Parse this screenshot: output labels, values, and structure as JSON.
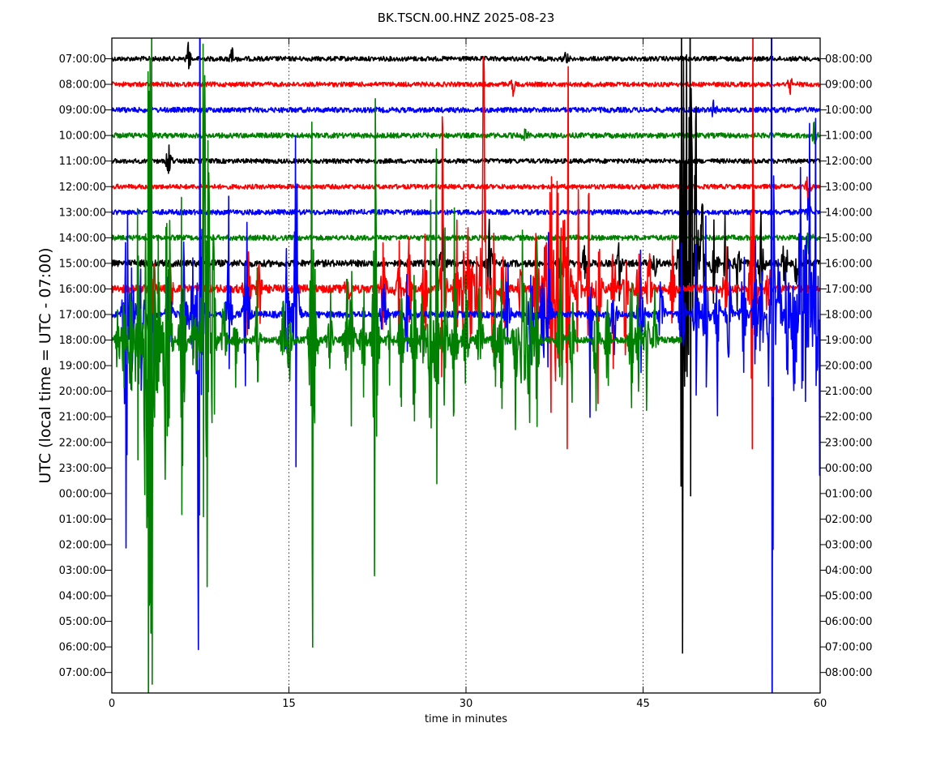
{
  "chart_data": {
    "type": "line",
    "title": "BK.TSCN.00.HNZ 2025-08-23",
    "xlabel": "time in minutes",
    "ylabel": "UTC (local time = UTC - 07:00)",
    "xlim": [
      0,
      60
    ],
    "x_ticks": [
      "0",
      "15",
      "30",
      "45",
      "60"
    ],
    "x_tick_values": [
      0,
      15,
      30,
      45,
      60
    ],
    "vertical_grid": "dotted at 15, 30, 45",
    "left_tick_labels": [
      "07:00:00",
      "08:00:00",
      "09:00:00",
      "10:00:00",
      "11:00:00",
      "12:00:00",
      "13:00:00",
      "14:00:00",
      "15:00:00",
      "16:00:00",
      "17:00:00",
      "18:00:00",
      "19:00:00",
      "20:00:00",
      "21:00:00",
      "22:00:00",
      "23:00:00",
      "00:00:00",
      "01:00:00",
      "02:00:00",
      "03:00:00",
      "04:00:00",
      "05:00:00",
      "06:00:00",
      "07:00:00"
    ],
    "right_tick_labels": [
      "08:00:00",
      "09:00:00",
      "10:00:00",
      "11:00:00",
      "12:00:00",
      "13:00:00",
      "14:00:00",
      "15:00:00",
      "16:00:00",
      "17:00:00",
      "18:00:00",
      "19:00:00",
      "20:00:00",
      "21:00:00",
      "22:00:00",
      "23:00:00",
      "00:00:00",
      "01:00:00",
      "02:00:00",
      "03:00:00",
      "04:00:00",
      "05:00:00",
      "06:00:00",
      "07:00:00",
      "08:00:00"
    ],
    "series_colors_cycle": [
      "#000000",
      "#ff0000",
      "#0000ff",
      "#008000"
    ],
    "traces": [
      {
        "hour": "07:00:00",
        "color": "#000000",
        "noise": 0.9,
        "x_end": 60,
        "spikes": [
          [
            6.5,
            0.6
          ],
          [
            10.2,
            0.5
          ],
          [
            38.5,
            0.4
          ]
        ]
      },
      {
        "hour": "08:00:00",
        "color": "#ff0000",
        "noise": 0.9,
        "x_end": 60,
        "spikes": [
          [
            34,
            0.4
          ],
          [
            57.5,
            0.4
          ]
        ]
      },
      {
        "hour": "09:00:00",
        "color": "#0000ff",
        "noise": 1.0,
        "x_end": 60,
        "spikes": [
          [
            51,
            0.4
          ]
        ]
      },
      {
        "hour": "10:00:00",
        "color": "#008000",
        "noise": 1.0,
        "x_end": 60,
        "spikes": [
          [
            35,
            0.4
          ],
          [
            59.5,
            0.5
          ]
        ]
      },
      {
        "hour": "11:00:00",
        "color": "#000000",
        "noise": 0.9,
        "x_end": 60,
        "spikes": [
          [
            4.8,
            0.6
          ]
        ]
      },
      {
        "hour": "12:00:00",
        "color": "#ff0000",
        "noise": 0.9,
        "x_end": 60,
        "spikes": [
          [
            59,
            0.6
          ]
        ]
      },
      {
        "hour": "13:00:00",
        "color": "#0000ff",
        "noise": 1.0,
        "x_end": 60,
        "spikes": [
          [
            59,
            0.6
          ]
        ]
      },
      {
        "hour": "14:00:00",
        "color": "#008000",
        "noise": 1.0,
        "x_end": 60,
        "spikes": [
          [
            59,
            0.6
          ]
        ]
      },
      {
        "hour": "15:00:00",
        "color": "#000000",
        "noise": 1.3,
        "x_end": 60,
        "spikes": [
          [
            28,
            1.0
          ],
          [
            32,
            1.5
          ],
          [
            38,
            1.2
          ],
          [
            40,
            1.0
          ],
          [
            43,
            1.2
          ],
          [
            46,
            1.0
          ],
          [
            48.3,
            16.0
          ],
          [
            48.6,
            12.0
          ],
          [
            49.0,
            9.0
          ],
          [
            49.5,
            6.0
          ],
          [
            50,
            3.0
          ],
          [
            51,
            2.0
          ],
          [
            52,
            2.0
          ],
          [
            53,
            1.5
          ],
          [
            55,
            1.5
          ],
          [
            57,
            1.5
          ],
          [
            58,
            1.2
          ]
        ]
      },
      {
        "hour": "16:00:00",
        "color": "#ff0000",
        "noise": 1.6,
        "x_end": 60,
        "spikes": [
          [
            3.5,
            1.5
          ],
          [
            5,
            1.5
          ],
          [
            11.5,
            2.5
          ],
          [
            12.5,
            1.5
          ],
          [
            20,
            1.3
          ],
          [
            23,
            2.0
          ],
          [
            24.3,
            1.8
          ],
          [
            25.2,
            2.0
          ],
          [
            26.5,
            2.5
          ],
          [
            28,
            5.0
          ],
          [
            29.2,
            4.0
          ],
          [
            29.8,
            2.5
          ],
          [
            30.3,
            4.5
          ],
          [
            30.9,
            2.0
          ],
          [
            31.5,
            9.5
          ],
          [
            32.3,
            3.0
          ],
          [
            33.2,
            2.5
          ],
          [
            34.6,
            2.5
          ],
          [
            36.0,
            3.5
          ],
          [
            36.8,
            4.0
          ],
          [
            37.2,
            5.0
          ],
          [
            37.7,
            7.0
          ],
          [
            38.1,
            5.5
          ],
          [
            38.6,
            9.5
          ],
          [
            39.5,
            3.0
          ],
          [
            40.4,
            3.0
          ],
          [
            41.2,
            3.5
          ],
          [
            42.5,
            2.5
          ],
          [
            43.5,
            2.5
          ],
          [
            44.6,
            2.0
          ],
          [
            45.5,
            2.0
          ],
          [
            47.5,
            1.5
          ],
          [
            52,
            1.5
          ],
          [
            54.3,
            8.0
          ],
          [
            55.6,
            1.5
          ]
        ]
      },
      {
        "hour": "17:00:00",
        "color": "#0000ff",
        "noise": 1.3,
        "x_end": 60,
        "spikes": [
          [
            1.2,
            7.5
          ],
          [
            1.7,
            3.5
          ],
          [
            2.5,
            2.5
          ],
          [
            3.3,
            3.0
          ],
          [
            4.8,
            3.0
          ],
          [
            6.1,
            3.0
          ],
          [
            6.8,
            2.5
          ],
          [
            7.4,
            16.5
          ],
          [
            9.9,
            3.5
          ],
          [
            11.4,
            4.5
          ],
          [
            14.8,
            2.5
          ],
          [
            15.6,
            6.5
          ],
          [
            23.0,
            2.0
          ],
          [
            25.0,
            2.0
          ],
          [
            33.5,
            2.0
          ],
          [
            35.5,
            2.0
          ],
          [
            36.5,
            2.5
          ],
          [
            37.0,
            2.5
          ],
          [
            40.5,
            2.5
          ],
          [
            42.5,
            2.5
          ],
          [
            44.8,
            2.5
          ],
          [
            46.5,
            2.0
          ],
          [
            48.3,
            3.0
          ],
          [
            49.5,
            2.5
          ],
          [
            50.3,
            3.0
          ],
          [
            51.3,
            2.5
          ],
          [
            52.3,
            2.5
          ],
          [
            53.5,
            2.5
          ],
          [
            54.5,
            3.0
          ],
          [
            55.0,
            2.5
          ],
          [
            55.9,
            16.5
          ],
          [
            56.5,
            2.5
          ],
          [
            57.2,
            3.0
          ],
          [
            57.8,
            4.0
          ],
          [
            58.3,
            5.5
          ],
          [
            58.7,
            4.5
          ],
          [
            59.1,
            5.5
          ],
          [
            59.6,
            6.0
          ],
          [
            60.0,
            6.5
          ]
        ]
      },
      {
        "hour": "18:00:00",
        "color": "#008000",
        "noise": 1.3,
        "x_end": 48.3,
        "spikes": [
          [
            0.5,
            1.5
          ],
          [
            1.0,
            2.0
          ],
          [
            1.6,
            3.0
          ],
          [
            2.2,
            6.0
          ],
          [
            2.8,
            4.0
          ],
          [
            3.1,
            12.0
          ],
          [
            3.4,
            14.0
          ],
          [
            3.9,
            3.5
          ],
          [
            4.6,
            7.5
          ],
          [
            4.9,
            3.0
          ],
          [
            5.9,
            5.0
          ],
          [
            6.0,
            3.5
          ],
          [
            7.0,
            2.5
          ],
          [
            7.8,
            13.0
          ],
          [
            8.1,
            12.5
          ],
          [
            8.6,
            4.0
          ],
          [
            9.5,
            2.0
          ],
          [
            10.5,
            1.5
          ],
          [
            12.3,
            2.0
          ],
          [
            14.5,
            1.5
          ],
          [
            15.0,
            1.8
          ],
          [
            17.0,
            12.0
          ],
          [
            17.2,
            2.0
          ],
          [
            18.5,
            1.5
          ],
          [
            19.9,
            2.5
          ],
          [
            20.3,
            3.0
          ],
          [
            21.3,
            2.0
          ],
          [
            22.3,
            9.0
          ],
          [
            23.5,
            1.5
          ],
          [
            24.5,
            2.0
          ],
          [
            25.6,
            3.5
          ],
          [
            26.3,
            2.0
          ],
          [
            27.0,
            4.0
          ],
          [
            27.5,
            5.0
          ],
          [
            28.2,
            3.5
          ],
          [
            29.0,
            5.0
          ],
          [
            30.0,
            2.5
          ],
          [
            31.2,
            2.5
          ],
          [
            32.5,
            2.0
          ],
          [
            33.0,
            3.0
          ],
          [
            34.2,
            2.5
          ],
          [
            34.8,
            4.0
          ],
          [
            35.3,
            6.0
          ],
          [
            36.0,
            3.0
          ],
          [
            38.0,
            3.5
          ],
          [
            39.0,
            2.5
          ],
          [
            41.0,
            3.0
          ],
          [
            42.0,
            2.0
          ],
          [
            44.0,
            2.5
          ],
          [
            44.6,
            3.0
          ],
          [
            45.3,
            2.0
          ],
          [
            46.0,
            1.5
          ]
        ]
      }
    ]
  }
}
